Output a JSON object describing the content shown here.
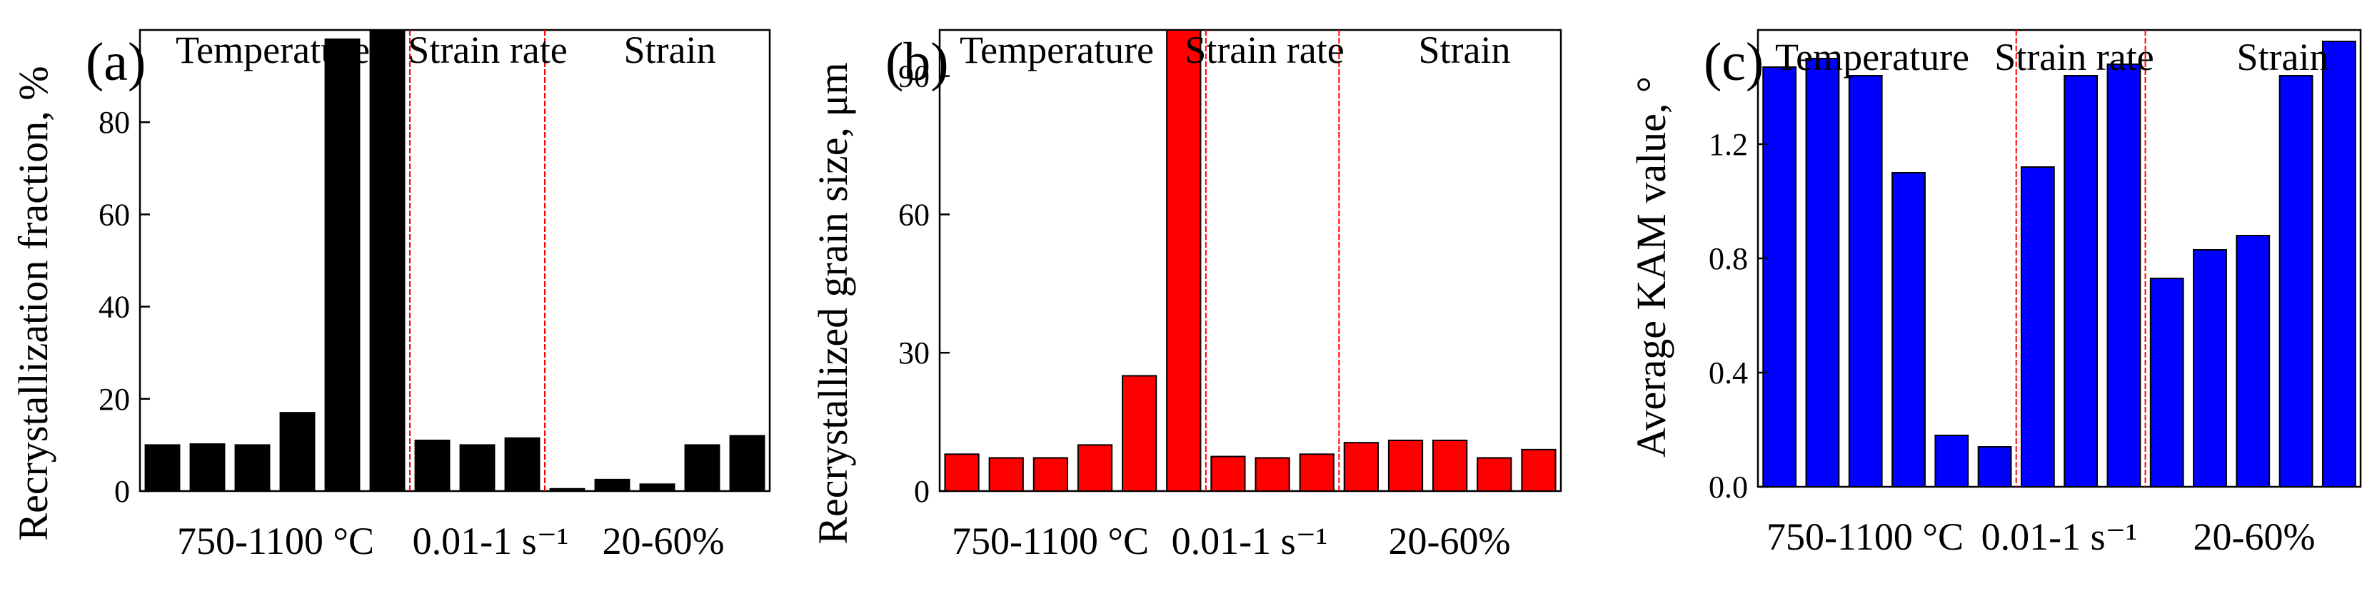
{
  "chart_data": [
    {
      "type": "bar",
      "panel_label": "(a)",
      "ylabel": "Recrystallization fraction, %",
      "ylim": [
        0,
        100
      ],
      "yticks": [
        0,
        20,
        40,
        60,
        80
      ],
      "bar_color": "#000000",
      "values": [
        10,
        10.2,
        10,
        17,
        98,
        100,
        11,
        10,
        11.5,
        0.5,
        2.5,
        1.5,
        10,
        12
      ],
      "separators_after": [
        6,
        9
      ],
      "groups": [
        {
          "title": "Temperature",
          "range_label": "750-1100 °C"
        },
        {
          "title": "Strain rate",
          "range_label": "0.01-1 s⁻¹"
        },
        {
          "title": "Strain",
          "range_label": "20-60%"
        }
      ],
      "separator_color": "#ff0000"
    },
    {
      "type": "bar",
      "panel_label": "(b)",
      "ylabel": "Recrystallized grain size, μm",
      "ylim": [
        0,
        100
      ],
      "yticks": [
        0,
        30,
        60,
        90
      ],
      "bar_color": "#ff0000",
      "values": [
        8,
        7.2,
        7.2,
        10,
        25,
        100,
        7.5,
        7.2,
        8,
        10.5,
        11,
        11,
        7.2,
        9
      ],
      "separators_after": [
        6,
        9
      ],
      "groups": [
        {
          "title": "Temperature",
          "range_label": "750-1100 °C"
        },
        {
          "title": "Strain rate",
          "range_label": "0.01-1 s⁻¹"
        },
        {
          "title": "Strain",
          "range_label": "20-60%"
        }
      ],
      "separator_color": "#ff0000"
    },
    {
      "type": "bar",
      "panel_label": "(c)",
      "ylabel": "Average KAM value, °",
      "ylim": [
        0,
        1.6
      ],
      "yticks": [
        "0.0",
        "0.4",
        "0.8",
        "1.2"
      ],
      "bar_color": "#0000ff",
      "values": [
        1.47,
        1.5,
        1.44,
        1.1,
        0.18,
        0.14,
        1.12,
        1.44,
        1.48,
        0.73,
        0.83,
        0.88,
        1.44,
        1.56
      ],
      "separators_after": [
        6,
        9
      ],
      "groups": [
        {
          "title": "Temperature",
          "range_label": "750-1100 °C"
        },
        {
          "title": "Strain rate",
          "range_label": "0.01-1 s⁻¹"
        },
        {
          "title": "Strain",
          "range_label": "20-60%"
        }
      ],
      "separator_color": "#ff0000"
    }
  ]
}
